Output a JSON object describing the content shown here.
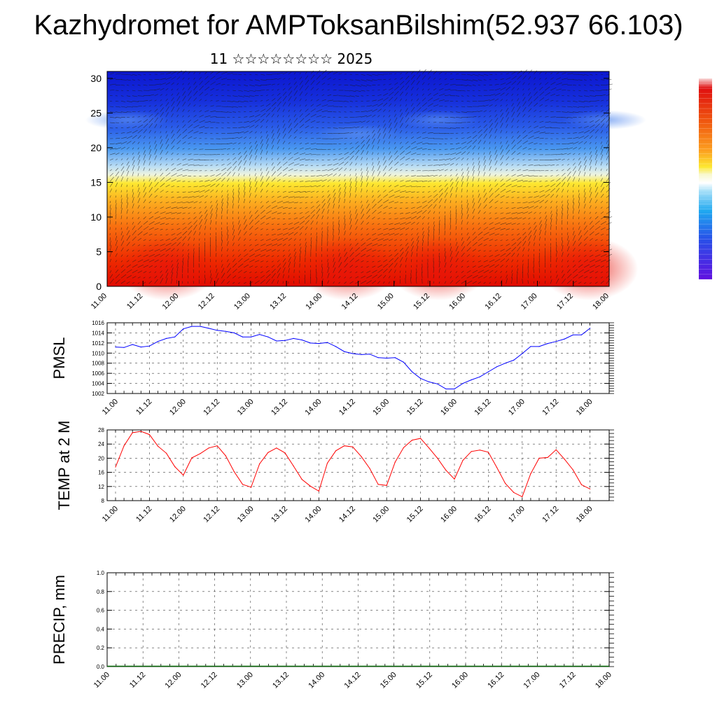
{
  "title": "Kazhydromet for AMPToksanBilshim(52.937 66.103)",
  "subtitle": "11 ☆☆☆☆☆☆☆☆ 2025",
  "chart_data": [
    {
      "type": "heatmap",
      "ylim": [
        0,
        31
      ],
      "yticks": [
        0,
        5,
        10,
        15,
        20,
        25,
        30
      ],
      "x_tick_labels": [
        "11.00",
        "11.12",
        "12.00",
        "12.12",
        "13.00",
        "13.12",
        "14.00",
        "14.12",
        "15.00",
        "15.12",
        "16.00",
        "16.12",
        "17.00",
        "17.12",
        "18.00"
      ],
      "colormap": "blue-white-yellow-orange-red",
      "overlay": "wind vectors",
      "colorbar": true
    },
    {
      "type": "line",
      "ylabel": "PMSL",
      "ylim": [
        1002,
        1016
      ],
      "yticks": [
        1002,
        1004,
        1006,
        1008,
        1010,
        1012,
        1014,
        1016
      ],
      "x_tick_labels": [
        "11.00",
        "11.12",
        "12.00",
        "12.12",
        "13.00",
        "13.12",
        "14.00",
        "14.12",
        "15.00",
        "15.12",
        "16.00",
        "16.12",
        "17.00",
        "17.12",
        "18.00"
      ],
      "grid": true,
      "color": "#0000ff",
      "x": [
        0,
        0.125,
        0.25,
        0.375,
        0.5,
        0.625,
        0.75,
        0.875,
        1,
        1.125,
        1.25,
        1.375,
        1.5,
        1.625,
        1.75,
        1.875,
        2,
        2.125,
        2.25,
        2.375,
        2.5,
        2.625,
        2.75,
        2.875,
        3,
        3.125,
        3.25,
        3.375,
        3.5,
        3.625,
        3.75,
        3.875,
        4,
        4.125,
        4.25,
        4.375,
        4.5,
        4.625,
        4.75,
        4.875,
        5,
        5.125,
        5.25,
        5.375,
        5.5,
        5.625,
        5.75,
        5.875,
        6,
        6.125,
        6.25,
        6.375,
        6.5,
        6.625,
        6.75,
        6.875,
        7
      ],
      "values": [
        1011.2,
        1011.1,
        1011.7,
        1011.2,
        1011.4,
        1012.3,
        1012.9,
        1013.2,
        1014.8,
        1015.3,
        1015.3,
        1014.9,
        1014.5,
        1014.3,
        1014.0,
        1013.2,
        1013.2,
        1013.7,
        1013.2,
        1012.4,
        1012.5,
        1012.9,
        1012.6,
        1012.0,
        1011.9,
        1012.1,
        1011.3,
        1010.3,
        1009.9,
        1009.7,
        1009.8,
        1009.1,
        1009.0,
        1009.1,
        1008.2,
        1006.3,
        1005.0,
        1004.3,
        1003.9,
        1002.9,
        1002.9,
        1004.0,
        1004.7,
        1005.3,
        1006.3,
        1007.3,
        1008.0,
        1008.6,
        1009.9,
        1011.3,
        1011.3,
        1011.9,
        1012.3,
        1012.8,
        1013.6,
        1013.6,
        1014.9
      ]
    },
    {
      "type": "line",
      "ylabel": "TEMP at 2 M",
      "ylim": [
        8,
        28
      ],
      "yticks": [
        8,
        12,
        16,
        20,
        24,
        28
      ],
      "x_tick_labels": [
        "11.00",
        "11.12",
        "12.00",
        "12.12",
        "13.00",
        "13.12",
        "14.00",
        "14.12",
        "15.00",
        "15.12",
        "16.00",
        "16.12",
        "17.00",
        "17.12",
        "18.00"
      ],
      "grid": true,
      "color": "#ff0000",
      "x": [
        0,
        0.125,
        0.25,
        0.375,
        0.5,
        0.625,
        0.75,
        0.875,
        1,
        1.125,
        1.25,
        1.375,
        1.5,
        1.625,
        1.75,
        1.875,
        2,
        2.125,
        2.25,
        2.375,
        2.5,
        2.625,
        2.75,
        2.875,
        3,
        3.125,
        3.25,
        3.375,
        3.5,
        3.625,
        3.75,
        3.875,
        4,
        4.125,
        4.25,
        4.375,
        4.5,
        4.625,
        4.75,
        4.875,
        5,
        5.125,
        5.25,
        5.375,
        5.5,
        5.625,
        5.75,
        5.875,
        6,
        6.125,
        6.25,
        6.375,
        6.5,
        6.625,
        6.75,
        6.875,
        7
      ],
      "values": [
        17.5,
        23.5,
        27.2,
        27.6,
        26.7,
        23.4,
        21.4,
        17.6,
        15.2,
        20.1,
        21.3,
        22.9,
        23.5,
        20.7,
        16.2,
        12.6,
        11.8,
        18.4,
        21.6,
        22.9,
        21.5,
        17.8,
        14.0,
        12.1,
        10.7,
        18.6,
        22.1,
        23.5,
        23.2,
        20.5,
        17.1,
        12.6,
        12.3,
        18.9,
        23.0,
        25.1,
        25.6,
        22.9,
        20.0,
        16.6,
        14.1,
        19.4,
        21.9,
        22.3,
        21.7,
        17.4,
        12.9,
        10.3,
        9.1,
        15.6,
        20.0,
        20.2,
        22.4,
        19.7,
        16.7,
        12.5,
        11.3
      ]
    },
    {
      "type": "bar",
      "ylabel": "PRECIP, mm",
      "ylim": [
        0,
        1.0
      ],
      "yticks": [
        "0.0",
        "0.2",
        "0.4",
        "0.6",
        "0.8",
        "1.0"
      ],
      "x_tick_labels": [
        "11.00",
        "11.12",
        "12.00",
        "12.12",
        "13.00",
        "13.12",
        "14.00",
        "14.12",
        "15.00",
        "15.12",
        "16.00",
        "16.12",
        "17.00",
        "17.12",
        "18.00"
      ],
      "grid": true,
      "values": []
    }
  ]
}
